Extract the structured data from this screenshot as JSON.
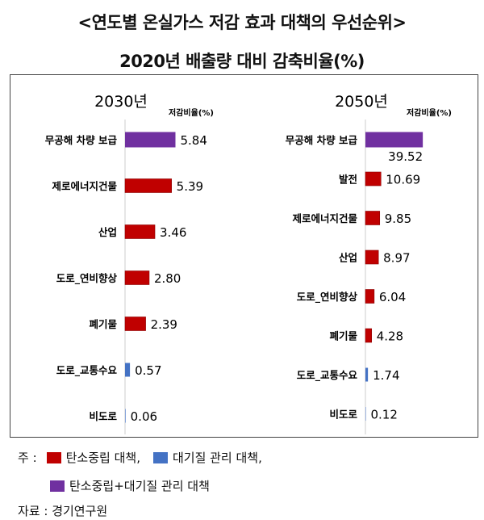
{
  "title_line1": "<연도별 온실가스 저감 효과 대책의 우선순위>",
  "title_line2": "2020년 배출량 대비 감축비율(%)",
  "colors": {
    "carbon_neutral": "#c00000",
    "air_quality": "#4472c4",
    "both": "#7030a0"
  },
  "chart_data": [
    {
      "type": "bar",
      "orientation": "horizontal",
      "title": "2030년",
      "value_label": "저감비율(%)",
      "categories": [
        "무공해 차량 보급",
        "제로에너지건물",
        "산업",
        "도로_연비향상",
        "폐기물",
        "도로_교통수요",
        "비도로"
      ],
      "values": [
        5.84,
        5.39,
        3.46,
        2.8,
        2.39,
        0.57,
        0.06
      ],
      "value_labels": [
        "5.84",
        "5.39",
        "3.46",
        "2.80",
        "2.39",
        "0.57",
        "0.06"
      ],
      "groups": [
        "both",
        "carbon_neutral",
        "carbon_neutral",
        "carbon_neutral",
        "carbon_neutral",
        "air_quality",
        "air_quality"
      ]
    },
    {
      "type": "bar",
      "orientation": "horizontal",
      "title": "2050년",
      "value_label": "저감비율(%)",
      "categories": [
        "무공해 차량 보급",
        "발전",
        "제로에너지건물",
        "산업",
        "도로_연비향상",
        "폐기물",
        "도로_교통수요",
        "비도로"
      ],
      "values": [
        39.52,
        10.69,
        9.85,
        8.97,
        6.04,
        4.28,
        1.74,
        0.12
      ],
      "value_labels": [
        "39.52",
        "10.69",
        "9.85",
        "8.97",
        "6.04",
        "4.28",
        "1.74",
        "0.12"
      ],
      "groups": [
        "both",
        "carbon_neutral",
        "carbon_neutral",
        "carbon_neutral",
        "carbon_neutral",
        "carbon_neutral",
        "air_quality",
        "air_quality"
      ]
    }
  ],
  "legend": {
    "prefix": "주 :",
    "items": [
      "탄소중립 대책,",
      "대기질 관리 대책,",
      "탄소중립+대기질 관리 대책"
    ]
  },
  "source": "자료 : 경기연구원"
}
